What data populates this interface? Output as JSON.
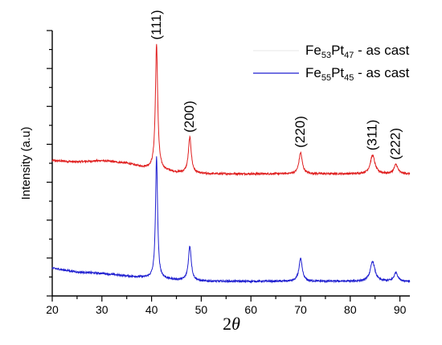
{
  "chart_data": {
    "type": "line",
    "xlabel_main": "2",
    "xlabel_symbol": "θ",
    "ylabel": "Intensity (a.u)",
    "xlim": [
      20,
      92
    ],
    "xticks": [
      20,
      30,
      40,
      50,
      60,
      70,
      80,
      90
    ],
    "ylim": [
      0,
      100
    ],
    "y_ticks_labeled": false,
    "legend": [
      {
        "base": "Fe",
        "sub1": "53",
        "mid": "Pt",
        "sub2": "47",
        "suffix": " - as cast",
        "color": "#ececec"
      },
      {
        "base": "Fe",
        "sub1": "55",
        "mid": "Pt",
        "sub2": "45",
        "suffix": " - as cast",
        "color": "#1f1fd0"
      }
    ],
    "peak_labels": [
      {
        "text": "(111)",
        "x": 41
      },
      {
        "text": "(200)",
        "x": 47.7
      },
      {
        "text": "(220)",
        "x": 70
      },
      {
        "text": "(311)",
        "x": 84.5
      },
      {
        "text": "(222)",
        "x": 89.2
      }
    ],
    "series": [
      {
        "color": "#e02020",
        "baseline": [
          [
            20,
            51.0
          ],
          [
            25,
            50.5
          ],
          [
            30,
            51.0
          ],
          [
            35,
            50.0
          ],
          [
            38,
            48.6
          ],
          [
            45,
            46.5
          ],
          [
            50,
            46.0
          ],
          [
            60,
            46.0
          ],
          [
            70,
            46.0
          ],
          [
            80,
            46.0
          ],
          [
            92,
            46.0
          ]
        ],
        "noise": 0.35,
        "peaks": [
          {
            "center": 41.0,
            "height": 47.0,
            "width": 0.28
          },
          {
            "center": 47.7,
            "height": 13.5,
            "width": 0.35
          },
          {
            "center": 70.0,
            "height": 8.0,
            "width": 0.4
          },
          {
            "center": 84.5,
            "height": 7.0,
            "width": 0.55
          },
          {
            "center": 89.2,
            "height": 3.5,
            "width": 0.45
          }
        ]
      },
      {
        "color": "#1f1fd0",
        "baseline": [
          [
            20,
            10.5
          ],
          [
            25,
            9.0
          ],
          [
            30,
            8.5
          ],
          [
            35,
            7.5
          ],
          [
            38,
            7.0
          ],
          [
            45,
            6.0
          ],
          [
            50,
            5.5
          ],
          [
            60,
            5.5
          ],
          [
            70,
            5.5
          ],
          [
            80,
            5.5
          ],
          [
            92,
            5.5
          ]
        ],
        "noise": 0.35,
        "peaks": [
          {
            "center": 41.0,
            "height": 46.0,
            "width": 0.25
          },
          {
            "center": 47.7,
            "height": 13.0,
            "width": 0.35
          },
          {
            "center": 70.0,
            "height": 8.5,
            "width": 0.4
          },
          {
            "center": 84.5,
            "height": 7.5,
            "width": 0.55
          },
          {
            "center": 89.2,
            "height": 3.3,
            "width": 0.45
          }
        ]
      }
    ]
  }
}
